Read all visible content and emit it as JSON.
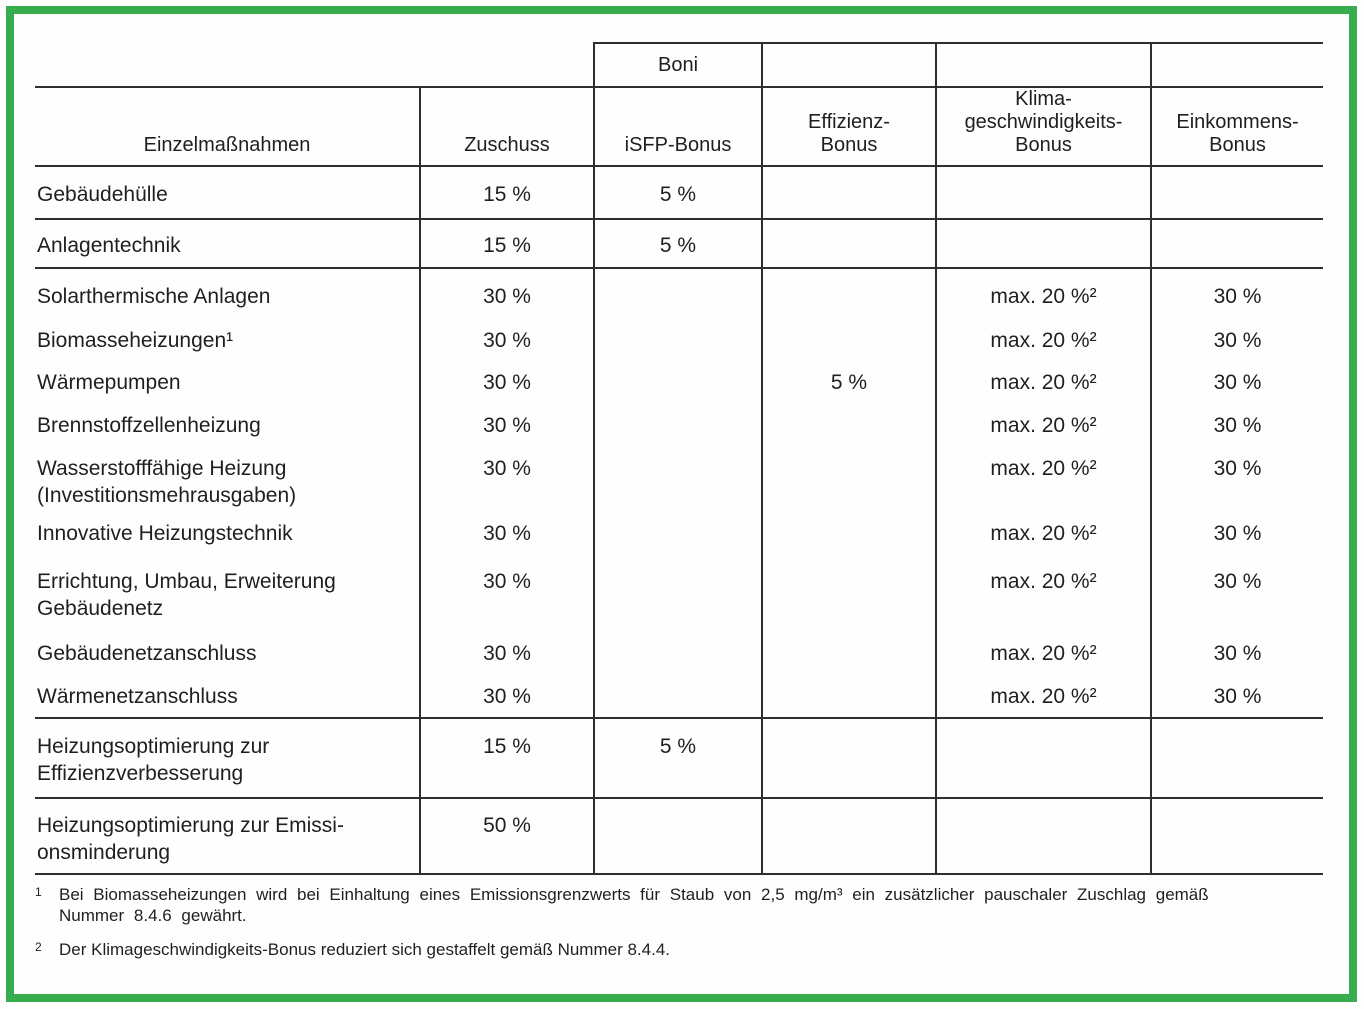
{
  "frame_color": "#38ad4e",
  "table": {
    "boni_label": "Boni",
    "header": {
      "cells": [
        "Einzelmaßnahmen",
        "Zuschuss",
        "iSFP-Bonus",
        "Effizienz-\nBonus",
        "Klima-\ngeschwindigkeits-\nBonus",
        "Einkommens-\nBonus"
      ]
    },
    "rows": [
      {
        "label": "Gebäudehülle",
        "cells": [
          "15 %",
          "5 %",
          "",
          "",
          ""
        ],
        "rule_below": true
      },
      {
        "label": "Anlagentechnik",
        "cells": [
          "15 %",
          "5 %",
          "",
          "",
          ""
        ],
        "rule_below": true
      },
      {
        "label": "Solarthermische Anlagen",
        "cells": [
          "30 %",
          "",
          "",
          "max. 20 %²",
          "30 %"
        ],
        "rule_below": false
      },
      {
        "label": "Biomasseheizungen¹",
        "cells": [
          "30 %",
          "",
          "",
          "max. 20 %²",
          "30 %"
        ],
        "rule_below": false
      },
      {
        "label": "Wärmepumpen",
        "cells": [
          "30 %",
          "",
          "5 %",
          "max. 20 %²",
          "30 %"
        ],
        "rule_below": false
      },
      {
        "label": "Brennstoffzellenheizung",
        "cells": [
          "30 %",
          "",
          "",
          "max. 20 %²",
          "30 %"
        ],
        "rule_below": false
      },
      {
        "label": "Wasserstofffähige Heizung\n(Investitionsmehrausgaben)",
        "cells": [
          "30 %",
          "",
          "",
          "max. 20 %²",
          "30 %"
        ],
        "rule_below": false
      },
      {
        "label": "Innovative Heizungstechnik",
        "cells": [
          "30 %",
          "",
          "",
          "max. 20 %²",
          "30 %"
        ],
        "rule_below": false
      },
      {
        "label": "Errichtung, Umbau, Erweiterung\nGebäudenetz",
        "cells": [
          "30 %",
          "",
          "",
          "max. 20 %²",
          "30 %"
        ],
        "rule_below": false
      },
      {
        "label": "Gebäudenetzanschluss",
        "cells": [
          "30 %",
          "",
          "",
          "max. 20 %²",
          "30 %"
        ],
        "rule_below": false
      },
      {
        "label": "Wärmenetzanschluss",
        "cells": [
          "30 %",
          "",
          "",
          "max. 20 %²",
          "30 %"
        ],
        "rule_below": true
      },
      {
        "label": "Heizungsoptimierung zur\nEffizienzverbesserung",
        "cells": [
          "15 %",
          "5 %",
          "",
          "",
          ""
        ],
        "rule_below": true
      },
      {
        "label": "Heizungsoptimierung zur Emissi-\nonsminderung",
        "cells": [
          "50 %",
          "",
          "",
          "",
          ""
        ],
        "rule_below": true
      }
    ]
  },
  "footnotes": [
    {
      "marker": "1",
      "text": "Bei Biomasseheizungen wird bei Einhaltung eines Emissionsgrenzwerts für Staub von 2,5 mg/m³ ein zusätzlicher pauschaler Zuschlag gemäß\nNummer 8.4.6 gewährt."
    },
    {
      "marker": "2",
      "text": "Der Klimageschwindigkeits-Bonus reduziert sich gestaffelt gemäß Nummer 8.4.4."
    }
  ]
}
